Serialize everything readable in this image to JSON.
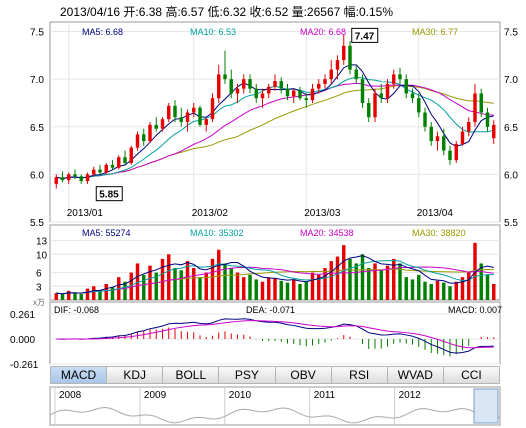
{
  "header": {
    "date": "2013/04/16",
    "open": "开:6.38",
    "high": "高:6.57",
    "low": "低:6.32",
    "close": "收:6.52",
    "volume": "量:26567",
    "change": "幅:0.15%"
  },
  "colors": {
    "up": "#e60000",
    "down": "#008000",
    "ma5": "#000080",
    "ma10": "#00a0a0",
    "ma20": "#cc00cc",
    "ma30": "#999900",
    "grid": "#e6e6e6"
  },
  "price_panel": {
    "ma_labels": {
      "ma5": "MA5: 6.68",
      "ma10": "MA10: 6.53",
      "ma20": "MA20: 6.68",
      "ma30": "MA30: 6.77"
    },
    "left_ticks": [
      "7.5",
      "7.0",
      "6.5",
      "6.0",
      "5.5"
    ],
    "right_ticks": [
      "7.5",
      "7.0",
      "6.5",
      "6.0",
      "5.5"
    ],
    "x_labels": [
      "2013/01",
      "2013/02",
      "2013/03",
      "2013/04"
    ],
    "max_annotation": "7.47",
    "min_annotation": "5.85"
  },
  "volume_panel": {
    "ma_labels": {
      "ma5": "MA5: 55274",
      "ma10": "MA10: 35302",
      "ma20": "MA20: 34538",
      "ma30": "MA30: 38820"
    },
    "left_ticks": [
      "13",
      "10",
      "6",
      "3"
    ],
    "unit": "x万"
  },
  "macd_panel": {
    "labels": {
      "dif": "DIF: -0.068",
      "dea": "DEA: -0.071",
      "macd": "MACD: 0.007"
    },
    "left_ticks": [
      "0.261",
      "0.000",
      "-0.261"
    ]
  },
  "tabs": [
    "MACD",
    "KDJ",
    "BOLL",
    "PSY",
    "OBV",
    "RSI",
    "WVAD",
    "CCI"
  ],
  "active_tab": "MACD",
  "overview": {
    "years": [
      "2008",
      "2009",
      "2010",
      "2011",
      "2012"
    ]
  },
  "chart_data": {
    "type": "candlestick",
    "x_start": "2013/01",
    "x_end": "2013/04/16",
    "ylim": [
      5.5,
      7.6
    ],
    "ohlc": [
      [
        5.9,
        6.0,
        5.85,
        5.97
      ],
      [
        5.97,
        6.03,
        5.92,
        5.94
      ],
      [
        5.94,
        6.02,
        5.9,
        6.0
      ],
      [
        6.0,
        6.05,
        5.95,
        5.98
      ],
      [
        5.98,
        6.0,
        5.9,
        5.93
      ],
      [
        5.93,
        6.02,
        5.9,
        6.0
      ],
      [
        6.0,
        6.08,
        5.98,
        6.05
      ],
      [
        6.05,
        6.1,
        6.0,
        6.02
      ],
      [
        6.02,
        6.12,
        6.0,
        6.1
      ],
      [
        6.1,
        6.15,
        6.05,
        6.07
      ],
      [
        6.07,
        6.2,
        6.05,
        6.18
      ],
      [
        6.18,
        6.25,
        6.1,
        6.12
      ],
      [
        6.12,
        6.3,
        6.1,
        6.28
      ],
      [
        6.28,
        6.45,
        6.25,
        6.42
      ],
      [
        6.42,
        6.48,
        6.3,
        6.35
      ],
      [
        6.35,
        6.55,
        6.33,
        6.52
      ],
      [
        6.52,
        6.6,
        6.45,
        6.48
      ],
      [
        6.48,
        6.6,
        6.45,
        6.58
      ],
      [
        6.58,
        6.75,
        6.55,
        6.72
      ],
      [
        6.72,
        6.78,
        6.55,
        6.6
      ],
      [
        6.6,
        6.7,
        6.5,
        6.55
      ],
      [
        6.55,
        6.68,
        6.45,
        6.65
      ],
      [
        6.65,
        6.75,
        6.6,
        6.7
      ],
      [
        6.7,
        6.72,
        6.5,
        6.52
      ],
      [
        6.52,
        6.6,
        6.45,
        6.58
      ],
      [
        6.58,
        6.85,
        6.55,
        6.8
      ],
      [
        6.8,
        7.15,
        6.75,
        7.05
      ],
      [
        7.05,
        7.3,
        6.95,
        7.0
      ],
      [
        7.0,
        7.1,
        6.8,
        6.85
      ],
      [
        6.85,
        6.95,
        6.75,
        6.9
      ],
      [
        6.9,
        7.05,
        6.85,
        7.0
      ],
      [
        7.0,
        7.05,
        6.85,
        6.9
      ],
      [
        6.9,
        6.95,
        6.75,
        6.8
      ],
      [
        6.8,
        6.9,
        6.7,
        6.85
      ],
      [
        6.85,
        6.95,
        6.8,
        6.92
      ],
      [
        6.92,
        7.05,
        6.88,
        6.98
      ],
      [
        6.98,
        7.02,
        6.85,
        6.9
      ],
      [
        6.9,
        6.95,
        6.78,
        6.82
      ],
      [
        6.82,
        6.9,
        6.75,
        6.88
      ],
      [
        6.88,
        6.92,
        6.78,
        6.8
      ],
      [
        6.8,
        6.85,
        6.7,
        6.78
      ],
      [
        6.78,
        6.95,
        6.75,
        6.9
      ],
      [
        6.9,
        7.0,
        6.85,
        6.95
      ],
      [
        6.95,
        7.05,
        6.9,
        7.0
      ],
      [
        7.0,
        7.2,
        6.95,
        7.1
      ],
      [
        7.1,
        7.25,
        7.0,
        7.2
      ],
      [
        7.2,
        7.47,
        7.15,
        7.35
      ],
      [
        7.35,
        7.4,
        7.05,
        7.1
      ],
      [
        7.1,
        7.15,
        6.95,
        7.0
      ],
      [
        7.0,
        7.05,
        6.7,
        6.75
      ],
      [
        6.75,
        6.8,
        6.55,
        6.6
      ],
      [
        6.6,
        6.9,
        6.55,
        6.85
      ],
      [
        6.85,
        6.95,
        6.75,
        6.8
      ],
      [
        6.8,
        7.0,
        6.75,
        6.95
      ],
      [
        6.95,
        7.1,
        6.9,
        7.05
      ],
      [
        7.05,
        7.12,
        6.95,
        7.0
      ],
      [
        7.0,
        7.05,
        6.8,
        6.85
      ],
      [
        6.85,
        6.9,
        6.75,
        6.8
      ],
      [
        6.8,
        6.85,
        6.6,
        6.65
      ],
      [
        6.65,
        6.7,
        6.45,
        6.5
      ],
      [
        6.5,
        6.55,
        6.3,
        6.35
      ],
      [
        6.35,
        6.45,
        6.25,
        6.4
      ],
      [
        6.4,
        6.48,
        6.2,
        6.25
      ],
      [
        6.25,
        6.3,
        6.1,
        6.15
      ],
      [
        6.15,
        6.35,
        6.12,
        6.32
      ],
      [
        6.32,
        6.5,
        6.3,
        6.45
      ],
      [
        6.45,
        6.6,
        6.4,
        6.55
      ],
      [
        6.55,
        6.95,
        6.5,
        6.85
      ],
      [
        6.85,
        6.9,
        6.6,
        6.65
      ],
      [
        6.65,
        6.7,
        6.45,
        6.5
      ],
      [
        6.38,
        6.57,
        6.32,
        6.52
      ]
    ],
    "volume": [
      1.5,
      1.2,
      2.0,
      1.5,
      1.3,
      2.5,
      3.0,
      2.2,
      3.5,
      2.8,
      5.0,
      4.0,
      6.0,
      8.0,
      5.5,
      7.5,
      6.0,
      9.0,
      10.0,
      7.0,
      6.5,
      8.5,
      7.0,
      5.0,
      6.0,
      9.0,
      11.0,
      8.0,
      7.0,
      6.0,
      5.0,
      5.5,
      4.5,
      4.0,
      5.0,
      4.8,
      4.2,
      3.8,
      4.5,
      3.5,
      4.0,
      6.0,
      5.5,
      7.0,
      8.5,
      9.5,
      12.0,
      9.0,
      8.0,
      10.0,
      7.0,
      8.0,
      6.5,
      7.5,
      9.0,
      8.0,
      5.0,
      4.5,
      5.5,
      4.0,
      3.5,
      4.2,
      3.8,
      3.0,
      4.0,
      5.0,
      6.0,
      12.5,
      8.0,
      5.5,
      3.5
    ],
    "macd_range": [
      -0.261,
      0.261
    ]
  }
}
